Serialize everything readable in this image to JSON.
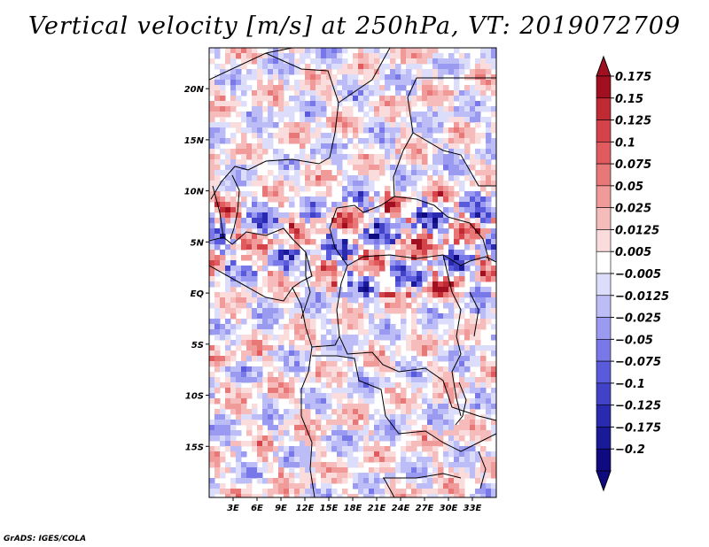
{
  "title": "Vertical velocity [m/s] at 250hPa, VT: 2019072709",
  "credit": "GrADS: IGES/COLA",
  "map": {
    "lon_range": [
      0,
      36
    ],
    "lat_range": [
      -20,
      24
    ],
    "lat_ticks": [
      {
        "value": 20,
        "label": "20N"
      },
      {
        "value": 15,
        "label": "15N"
      },
      {
        "value": 10,
        "label": "10N"
      },
      {
        "value": 5,
        "label": "5N"
      },
      {
        "value": 0,
        "label": "EQ"
      },
      {
        "value": -5,
        "label": "5S"
      },
      {
        "value": -10,
        "label": "10S"
      },
      {
        "value": -15,
        "label": "15S"
      }
    ],
    "lon_ticks": [
      {
        "value": 3,
        "label": "3E"
      },
      {
        "value": 6,
        "label": "6E"
      },
      {
        "value": 9,
        "label": "9E"
      },
      {
        "value": 12,
        "label": "12E"
      },
      {
        "value": 15,
        "label": "15E"
      },
      {
        "value": 18,
        "label": "18E"
      },
      {
        "value": 21,
        "label": "21E"
      },
      {
        "value": 24,
        "label": "24E"
      },
      {
        "value": 27,
        "label": "27E"
      },
      {
        "value": 30,
        "label": "30E"
      },
      {
        "value": 33,
        "label": "33E"
      }
    ]
  },
  "colorbar": {
    "labels": [
      "0.175",
      "0.15",
      "0.125",
      "0.1",
      "0.075",
      "0.05",
      "0.025",
      "0.0125",
      "0.005",
      "−0.005",
      "−0.0125",
      "−0.025",
      "−0.05",
      "−0.075",
      "−0.1",
      "−0.125",
      "−0.175",
      "−0.2"
    ],
    "colors": [
      "#a01020",
      "#c02a32",
      "#d4424a",
      "#e05a5e",
      "#e87878",
      "#f09a9a",
      "#f6bcbc",
      "#fbdcdc",
      "#ffffff",
      "#dcdcfb",
      "#bcbcf6",
      "#9a9af0",
      "#7878e8",
      "#5a5adc",
      "#4242c8",
      "#2a2ab0",
      "#1a1a98",
      "#100a80"
    ]
  }
}
